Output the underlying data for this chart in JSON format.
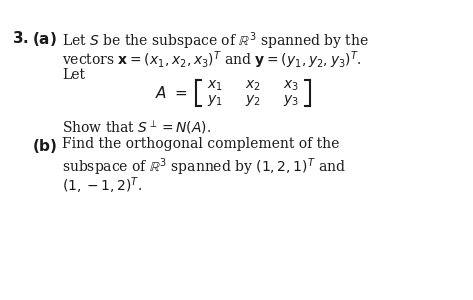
{
  "background_color": "#ffffff",
  "text_color": "#1a1a1a",
  "fig_width": 4.73,
  "fig_height": 3.0,
  "dpi": 100,
  "fs": 10.0,
  "bold_fs": 11.0
}
